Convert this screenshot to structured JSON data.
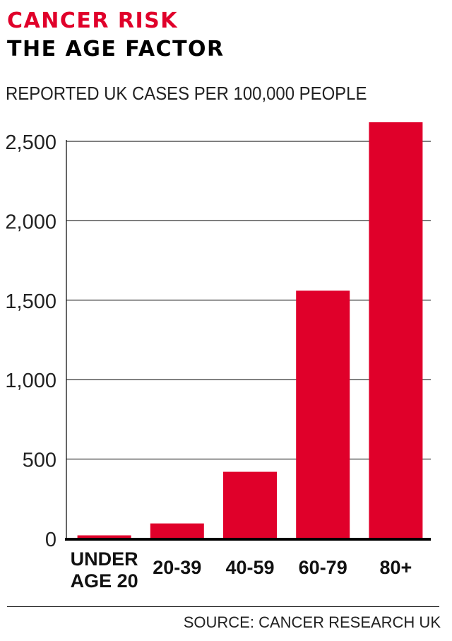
{
  "header": {
    "title": "CANCER RISK",
    "subtitle_line": "THE AGE FACTOR",
    "description": "REPORTED UK CASES PER 100,000 PEOPLE"
  },
  "source": "SOURCE: CANCER RESEARCH UK",
  "colors": {
    "accent": "#e0002a",
    "bar": "#e0002a",
    "text": "#222222",
    "grid": "#000000"
  },
  "chart_data": {
    "type": "bar",
    "title": "CANCER RISK",
    "subtitle": "THE AGE FACTOR",
    "ylabel": "REPORTED UK CASES PER 100,000 PEOPLE",
    "xlabel": "",
    "categories": [
      [
        "UNDER",
        "AGE 20"
      ],
      [
        "20-39"
      ],
      [
        "40-59"
      ],
      [
        "60-79"
      ],
      [
        "80+"
      ]
    ],
    "values": [
      20,
      95,
      420,
      1560,
      2620
    ],
    "ylim": [
      0,
      2500
    ],
    "yticks": [
      0,
      500,
      1000,
      1500,
      2000,
      2500
    ],
    "ytick_labels": [
      "0",
      "500",
      "1,000",
      "1,500",
      "2,000",
      "2,500"
    ],
    "grid": true,
    "legend": "none"
  }
}
